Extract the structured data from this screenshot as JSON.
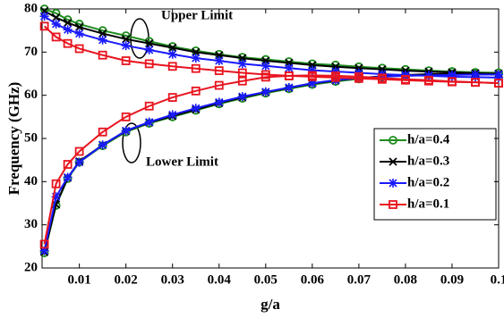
{
  "chart_data": {
    "type": "line",
    "x_label": "g/a",
    "y_label": "Frequency (GHz)",
    "annotations": [
      "Upper Limit",
      "Lower Limit"
    ],
    "x": [
      0.0025,
      0.005,
      0.0075,
      0.01,
      0.015,
      0.02,
      0.025,
      0.03,
      0.035,
      0.04,
      0.045,
      0.05,
      0.055,
      0.06,
      0.065,
      0.07,
      0.075,
      0.08,
      0.085,
      0.09,
      0.095,
      0.1
    ],
    "series": [
      {
        "name": "h/a=0.4",
        "color": "#1e8c1e",
        "marker": "circle",
        "values": [
          23.5,
          34.5,
          40.7,
          44.5,
          48.3,
          51.5,
          53.5,
          55,
          56.5,
          58,
          59.3,
          60.5,
          61.5,
          62.5,
          63.2,
          63.8,
          64.3,
          64.6,
          64.8,
          65,
          65.1,
          65.2
        ],
        "upper": [
          80,
          79,
          77.5,
          76.5,
          75,
          73.8,
          72.5,
          71.3,
          70.3,
          69.5,
          68.8,
          68.3,
          67.8,
          67.3,
          67,
          66.6,
          66.3,
          66,
          65.7,
          65.5,
          65.3,
          65.2
        ]
      },
      {
        "name": "h/a=0.3",
        "color": "#000000",
        "marker": "x",
        "values": [
          23.7,
          34.7,
          40.9,
          44.7,
          48.5,
          51.7,
          53.7,
          55.2,
          56.7,
          58.2,
          59.5,
          60.7,
          61.7,
          62.7,
          63.4,
          64,
          64.4,
          64.7,
          64.9,
          65,
          65,
          65
        ],
        "upper": [
          79.5,
          78,
          76.8,
          75.8,
          74.3,
          73,
          72,
          71,
          70,
          69.3,
          68.6,
          68,
          67.5,
          67,
          66.6,
          66.3,
          66,
          65.7,
          65.5,
          65.3,
          65.1,
          65
        ]
      },
      {
        "name": "h/a=0.2",
        "color": "#1a1aff",
        "marker": "star",
        "values": [
          24,
          36.5,
          41,
          44.5,
          48.5,
          51.8,
          53.8,
          55.5,
          57,
          58.4,
          59.7,
          60.8,
          61.8,
          62.8,
          63.5,
          64,
          64.3,
          64.5,
          64.6,
          64.7,
          64.8,
          64.8
        ],
        "upper": [
          78.3,
          76.5,
          75.2,
          74.3,
          72.8,
          71.5,
          70.5,
          69.5,
          68.6,
          68,
          67.3,
          66.8,
          66.3,
          65.8,
          65.5,
          65.2,
          64.9,
          64.7,
          64.5,
          64.3,
          64.2,
          64.1
        ]
      },
      {
        "name": "h/a=0.1",
        "color": "#e8141e",
        "marker": "square",
        "values": [
          25.5,
          39.5,
          44,
          47,
          51.5,
          55,
          57.5,
          59.5,
          61,
          62.3,
          63.3,
          64.2,
          64.5,
          64.6,
          64.5,
          64.3,
          64,
          63.7,
          63.5,
          63.2,
          63,
          62.8
        ],
        "upper": [
          76,
          73.5,
          72,
          70.8,
          69.3,
          68,
          67.3,
          66.7,
          66.2,
          65.7,
          65.2,
          64.8,
          64.5,
          64.3,
          64.1,
          63.9,
          63.7,
          63.5,
          63.3,
          63.1,
          63,
          62.8
        ]
      }
    ],
    "xlim": [
      0.002,
      0.1
    ],
    "xticks": [
      0.01,
      0.02,
      0.03,
      0.04,
      0.05,
      0.06,
      0.07,
      0.08,
      0.09,
      0.1
    ],
    "ylim": [
      20,
      80
    ],
    "yticks": [
      20,
      30,
      40,
      50,
      60,
      70,
      80
    ],
    "grid": false,
    "legend": "right"
  }
}
